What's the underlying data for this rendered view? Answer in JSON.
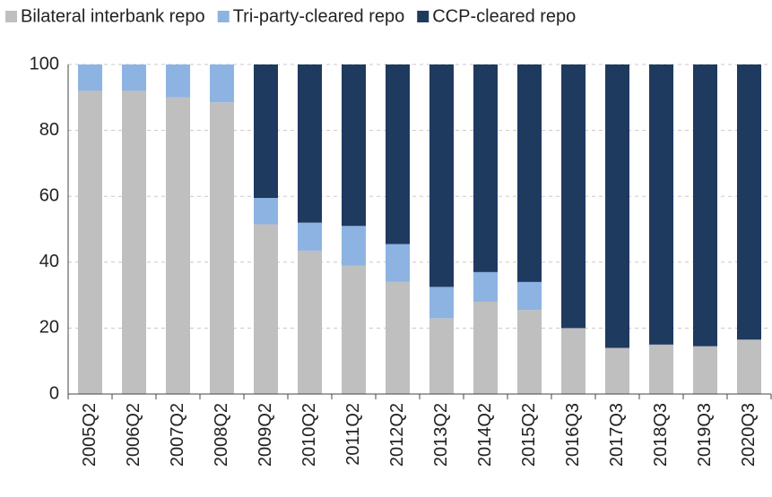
{
  "chart_data": {
    "type": "stacked_bar",
    "categories": [
      "2005Q2",
      "2006Q2",
      "2007Q2",
      "2008Q2",
      "2009Q2",
      "2010Q2",
      "2011Q2",
      "2012Q2",
      "2013Q2",
      "2014Q2",
      "2015Q2",
      "2016Q3",
      "2017Q3",
      "2018Q3",
      "2019Q3",
      "2020Q3"
    ],
    "series": [
      {
        "name": "Bilateral interbank repo",
        "color": "#bfbfbf",
        "values": [
          92,
          92,
          90,
          88.5,
          51.5,
          43.5,
          39,
          34,
          23,
          28,
          25.5,
          20,
          14,
          15,
          14.5,
          16.5
        ]
      },
      {
        "name": "Tri-party-cleared repo",
        "color": "#8db3e2",
        "values": [
          8,
          8,
          10,
          11.5,
          8,
          8.5,
          12,
          11.5,
          9.5,
          9,
          8.5,
          0,
          0,
          0,
          0,
          0
        ]
      },
      {
        "name": "CCP-cleared repo",
        "color": "#1f3a5f",
        "values": [
          0,
          0,
          0,
          0,
          40.5,
          48,
          49,
          54.5,
          67.5,
          63,
          66,
          80,
          86,
          85,
          85.5,
          83.5
        ]
      }
    ],
    "ylim": [
      0,
      100
    ],
    "yticks": [
      0,
      20,
      40,
      60,
      80,
      100
    ],
    "grid": true,
    "legend": "top"
  }
}
